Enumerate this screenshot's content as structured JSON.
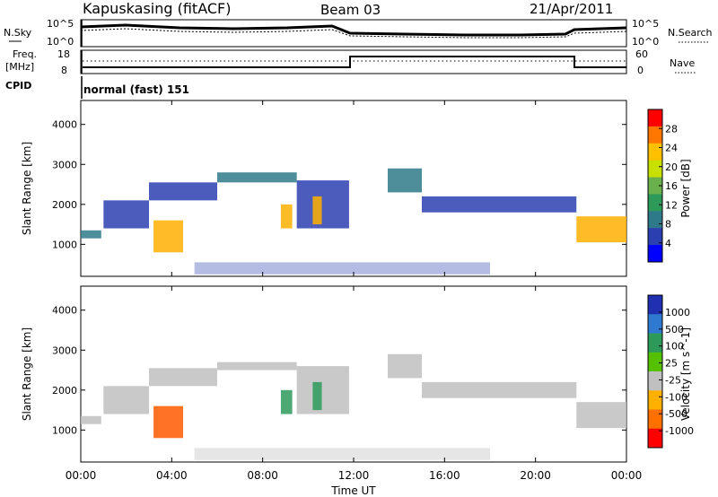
{
  "header": {
    "station": "Kapuskasing (fitACF)",
    "beam": "Beam 03",
    "date": "21/Apr/2011"
  },
  "noise_panel": {
    "left_label": "N.Sky",
    "left_ticks": [
      "10^5",
      "10^0"
    ],
    "right_label": "N.Search",
    "right_ticks": [
      "10^5",
      "10^0"
    ]
  },
  "freq_panel": {
    "left_label_1": "Freq.",
    "left_label_2": "[MHz]",
    "left_ticks": [
      "18",
      "8"
    ],
    "right_label": "Nave",
    "right_ticks": [
      "60",
      "0"
    ]
  },
  "cpid": {
    "label": "CPID",
    "text": "normal (fast) 151"
  },
  "chart_data": [
    {
      "type": "heatmap",
      "title": "",
      "xlabel": "",
      "ylabel": "Slant Range [km]",
      "ylim": [
        200,
        4600
      ],
      "xlim": [
        0,
        24
      ],
      "y_ticks": [
        "4000",
        "3000",
        "2000",
        "1000"
      ],
      "colorbar": {
        "label": "Power [dB]",
        "ticks": [
          "28",
          "24",
          "20",
          "16",
          "12",
          "8",
          "4"
        ],
        "colors": [
          "#ff0000",
          "#ff7700",
          "#ffc000",
          "#c8e000",
          "#6ab04c",
          "#2e9a5a",
          "#2f7a8a",
          "#2b3fb0",
          "#0000ff"
        ]
      },
      "echo_bands": [
        {
          "x": [
            0.0,
            0.9
          ],
          "y": [
            1150,
            1350
          ],
          "level": "mid"
        },
        {
          "x": [
            1.0,
            3.0
          ],
          "y": [
            1400,
            2100
          ],
          "level": "low"
        },
        {
          "x": [
            3.0,
            6.0
          ],
          "y": [
            2100,
            2550
          ],
          "level": "low"
        },
        {
          "x": [
            6.0,
            9.5
          ],
          "y": [
            2550,
            2800
          ],
          "level": "mid"
        },
        {
          "x": [
            9.5,
            11.8
          ],
          "y": [
            1400,
            2600
          ],
          "level": "low"
        },
        {
          "x": [
            3.2,
            4.5
          ],
          "y": [
            800,
            1600
          ],
          "level": "high"
        },
        {
          "x": [
            8.8,
            9.3
          ],
          "y": [
            1400,
            2000
          ],
          "level": "high"
        },
        {
          "x": [
            10.2,
            10.6
          ],
          "y": [
            1500,
            2200
          ],
          "level": "high"
        },
        {
          "x": [
            13.5,
            15.0
          ],
          "y": [
            2300,
            2900
          ],
          "level": "mid"
        },
        {
          "x": [
            15.0,
            21.8
          ],
          "y": [
            1800,
            2200
          ],
          "level": "low"
        },
        {
          "x": [
            21.8,
            24.0
          ],
          "y": [
            1050,
            1700
          ],
          "level": "high"
        },
        {
          "x": [
            5.0,
            18.0
          ],
          "y": [
            250,
            550
          ],
          "level": "low"
        }
      ]
    },
    {
      "type": "heatmap",
      "title": "",
      "xlabel": "Time UT",
      "ylabel": "Slant Range [km]",
      "ylim": [
        200,
        4600
      ],
      "xlim": [
        0,
        24
      ],
      "y_ticks": [
        "4000",
        "3000",
        "2000",
        "1000"
      ],
      "x_ticks": [
        "00:00",
        "04:00",
        "08:00",
        "12:00",
        "16:00",
        "20:00",
        "00:00"
      ],
      "colorbar": {
        "label": "Velocity [m s^-1]",
        "ticks": [
          "1000",
          "500",
          "100",
          "25",
          "-25",
          "-100",
          "-500",
          "-1000"
        ],
        "colors": [
          "#2030b0",
          "#2f7ad0",
          "#2e9a5a",
          "#55c000",
          "#c0c0c0",
          "#ffb000",
          "#ff7000",
          "#ff0000"
        ]
      },
      "echo_bands": [
        {
          "x": [
            0.0,
            0.9
          ],
          "y": [
            1150,
            1350
          ],
          "level": "grey"
        },
        {
          "x": [
            1.0,
            3.0
          ],
          "y": [
            1400,
            2100
          ],
          "level": "grey"
        },
        {
          "x": [
            3.0,
            6.0
          ],
          "y": [
            2100,
            2550
          ],
          "level": "grey"
        },
        {
          "x": [
            6.0,
            9.5
          ],
          "y": [
            2500,
            2700
          ],
          "level": "grey"
        },
        {
          "x": [
            9.5,
            11.8
          ],
          "y": [
            1400,
            2600
          ],
          "level": "grey"
        },
        {
          "x": [
            3.2,
            4.5
          ],
          "y": [
            800,
            1600
          ],
          "level": "negative"
        },
        {
          "x": [
            8.8,
            9.3
          ],
          "y": [
            1400,
            2000
          ],
          "level": "positive"
        },
        {
          "x": [
            10.2,
            10.6
          ],
          "y": [
            1500,
            2200
          ],
          "level": "positive"
        },
        {
          "x": [
            13.5,
            15.0
          ],
          "y": [
            2300,
            2900
          ],
          "level": "grey"
        },
        {
          "x": [
            15.0,
            21.8
          ],
          "y": [
            1800,
            2200
          ],
          "level": "grey"
        },
        {
          "x": [
            21.8,
            24.0
          ],
          "y": [
            1050,
            1700
          ],
          "level": "grey"
        },
        {
          "x": [
            5.0,
            18.0
          ],
          "y": [
            250,
            550
          ],
          "level": "mixed"
        }
      ]
    }
  ]
}
